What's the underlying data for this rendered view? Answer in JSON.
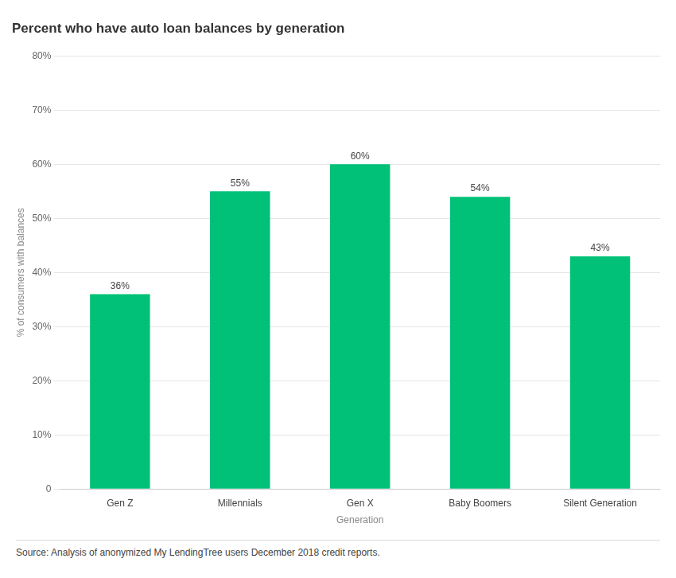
{
  "chart_data": {
    "type": "bar",
    "title": "Percent who have auto loan balances by generation",
    "categories": [
      "Gen Z",
      "Millennials",
      "Gen X",
      "Baby Boomers",
      "Silent Generation"
    ],
    "values": [
      36,
      55,
      60,
      54,
      43
    ],
    "value_labels": [
      "36%",
      "55%",
      "60%",
      "54%",
      "43%"
    ],
    "data_labels": true,
    "color": "#00C177",
    "xlabel": "Generation",
    "ylabel": "% of consumers with balances",
    "ylim": [
      0,
      80
    ],
    "yticks": [
      0,
      {
        "value": 10,
        "label": "10%"
      },
      {
        "value": 20,
        "label": "20%"
      },
      {
        "value": 30,
        "label": "30%"
      },
      {
        "value": 40,
        "label": "40%"
      },
      {
        "value": 50,
        "label": "50%"
      },
      {
        "value": 60,
        "label": "60%"
      },
      {
        "value": 70,
        "label": "70%"
      },
      {
        "value": 80,
        "label": "80%"
      }
    ],
    "grid": true,
    "source": "Source: Analysis of anonymized My LendingTree users December 2018 credit reports."
  }
}
